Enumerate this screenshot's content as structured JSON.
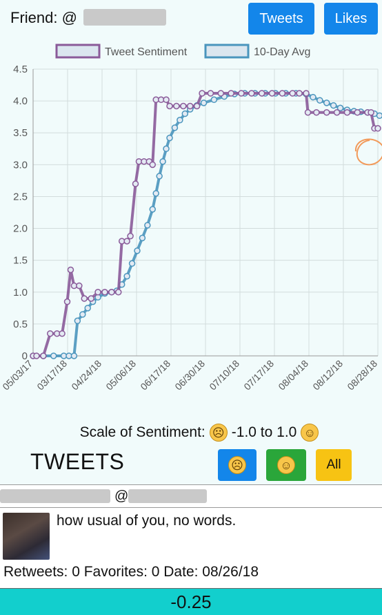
{
  "header": {
    "friend_label": "Friend: @",
    "tweets_button": "Tweets",
    "likes_button": "Likes"
  },
  "colors": {
    "primary_button": "#1386ea",
    "happy_button": "#2aa63a",
    "all_button": "#f7c313",
    "score_bar": "#12cfcd",
    "tweet_sentiment_line": "#8a5a99",
    "avg_line": "#4a95bd"
  },
  "chart_data": {
    "type": "line",
    "legend": [
      "Tweet Sentiment",
      "10-Day Avg"
    ],
    "legend_position": "top",
    "grid": true,
    "ylim": [
      0,
      4.5
    ],
    "y_ticks": [
      "0",
      "0.5",
      "1.0",
      "1.5",
      "2.0",
      "2.5",
      "3.0",
      "3.5",
      "4.0",
      "4.5"
    ],
    "x_tick_labels": [
      "05/03/17",
      "03/17/18",
      "04/24/18",
      "05/06/18",
      "06/17/18",
      "06/30/18",
      "07/10/18",
      "07/17/18",
      "08/04/18",
      "08/12/18",
      "08/28/18"
    ],
    "series": [
      {
        "name": "Tweet Sentiment",
        "points": [
          [
            0,
            0
          ],
          [
            0.1,
            0
          ],
          [
            0.3,
            0
          ],
          [
            0.5,
            0.35
          ],
          [
            0.7,
            0.35
          ],
          [
            0.85,
            0.35
          ],
          [
            1.0,
            0.85
          ],
          [
            1.1,
            1.35
          ],
          [
            1.2,
            1.1
          ],
          [
            1.35,
            1.1
          ],
          [
            1.5,
            0.9
          ],
          [
            1.7,
            0.9
          ],
          [
            1.9,
            1.0
          ],
          [
            2.1,
            1.0
          ],
          [
            2.3,
            1.0
          ],
          [
            2.5,
            1.0
          ],
          [
            2.6,
            1.8
          ],
          [
            2.75,
            1.8
          ],
          [
            2.85,
            1.88
          ],
          [
            3.0,
            2.7
          ],
          [
            3.1,
            3.05
          ],
          [
            3.25,
            3.05
          ],
          [
            3.4,
            3.05
          ],
          [
            3.5,
            3.0
          ],
          [
            3.6,
            4.02
          ],
          [
            3.75,
            4.02
          ],
          [
            3.9,
            4.02
          ],
          [
            4.0,
            3.92
          ],
          [
            4.2,
            3.92
          ],
          [
            4.4,
            3.92
          ],
          [
            4.6,
            3.92
          ],
          [
            4.8,
            3.92
          ],
          [
            4.95,
            4.12
          ],
          [
            5.2,
            4.12
          ],
          [
            5.5,
            4.12
          ],
          [
            5.8,
            4.12
          ],
          [
            6.1,
            4.12
          ],
          [
            6.4,
            4.12
          ],
          [
            6.7,
            4.12
          ],
          [
            7.0,
            4.12
          ],
          [
            7.3,
            4.12
          ],
          [
            7.6,
            4.12
          ],
          [
            7.8,
            4.12
          ],
          [
            8.0,
            4.12
          ],
          [
            8.05,
            3.82
          ],
          [
            8.3,
            3.82
          ],
          [
            8.6,
            3.82
          ],
          [
            8.9,
            3.82
          ],
          [
            9.2,
            3.82
          ],
          [
            9.5,
            3.82
          ],
          [
            9.8,
            3.82
          ],
          [
            9.9,
            3.82
          ],
          [
            10.0,
            3.57
          ],
          [
            10.1,
            3.57
          ]
        ]
      },
      {
        "name": "10-Day Avg",
        "points": [
          [
            0,
            0
          ],
          [
            0.3,
            0
          ],
          [
            0.6,
            0
          ],
          [
            0.9,
            0
          ],
          [
            1.05,
            0
          ],
          [
            1.2,
            0
          ],
          [
            1.3,
            0.55
          ],
          [
            1.45,
            0.65
          ],
          [
            1.6,
            0.75
          ],
          [
            1.75,
            0.85
          ],
          [
            1.9,
            0.92
          ],
          [
            2.1,
            0.98
          ],
          [
            2.3,
            1.0
          ],
          [
            2.45,
            1.02
          ],
          [
            2.6,
            1.12
          ],
          [
            2.75,
            1.25
          ],
          [
            2.9,
            1.45
          ],
          [
            3.05,
            1.65
          ],
          [
            3.2,
            1.85
          ],
          [
            3.35,
            2.05
          ],
          [
            3.5,
            2.3
          ],
          [
            3.6,
            2.55
          ],
          [
            3.7,
            2.82
          ],
          [
            3.8,
            3.05
          ],
          [
            3.9,
            3.25
          ],
          [
            4.0,
            3.42
          ],
          [
            4.15,
            3.58
          ],
          [
            4.3,
            3.7
          ],
          [
            4.45,
            3.8
          ],
          [
            4.6,
            3.87
          ],
          [
            4.8,
            3.93
          ],
          [
            5.0,
            3.97
          ],
          [
            5.3,
            4.02
          ],
          [
            5.6,
            4.07
          ],
          [
            5.9,
            4.11
          ],
          [
            6.2,
            4.12
          ],
          [
            6.5,
            4.12
          ],
          [
            6.8,
            4.12
          ],
          [
            7.1,
            4.12
          ],
          [
            7.4,
            4.12
          ],
          [
            7.7,
            4.12
          ],
          [
            8.0,
            4.11
          ],
          [
            8.2,
            4.06
          ],
          [
            8.4,
            4.01
          ],
          [
            8.6,
            3.97
          ],
          [
            8.8,
            3.93
          ],
          [
            9.0,
            3.89
          ],
          [
            9.2,
            3.86
          ],
          [
            9.4,
            3.84
          ],
          [
            9.6,
            3.83
          ],
          [
            9.8,
            3.82
          ],
          [
            10.0,
            3.8
          ],
          [
            10.15,
            3.77
          ]
        ]
      }
    ]
  },
  "scale": {
    "label": "Scale of Sentiment:",
    "sad_emoji": "☹",
    "range": "-1.0 to 1.0",
    "happy_emoji": "☺"
  },
  "tweets_section": {
    "heading": "TWEETS",
    "filter_sad": "☹",
    "filter_happy": "☺",
    "filter_all": "All"
  },
  "tweet": {
    "at_sign": "@",
    "text": "how usual of you, no words.",
    "meta": "Retweets: 0 Favorites: 0 Date: 08/26/18",
    "avatar_icon": "avatar-photo"
  },
  "score": {
    "value": "-0.25"
  }
}
